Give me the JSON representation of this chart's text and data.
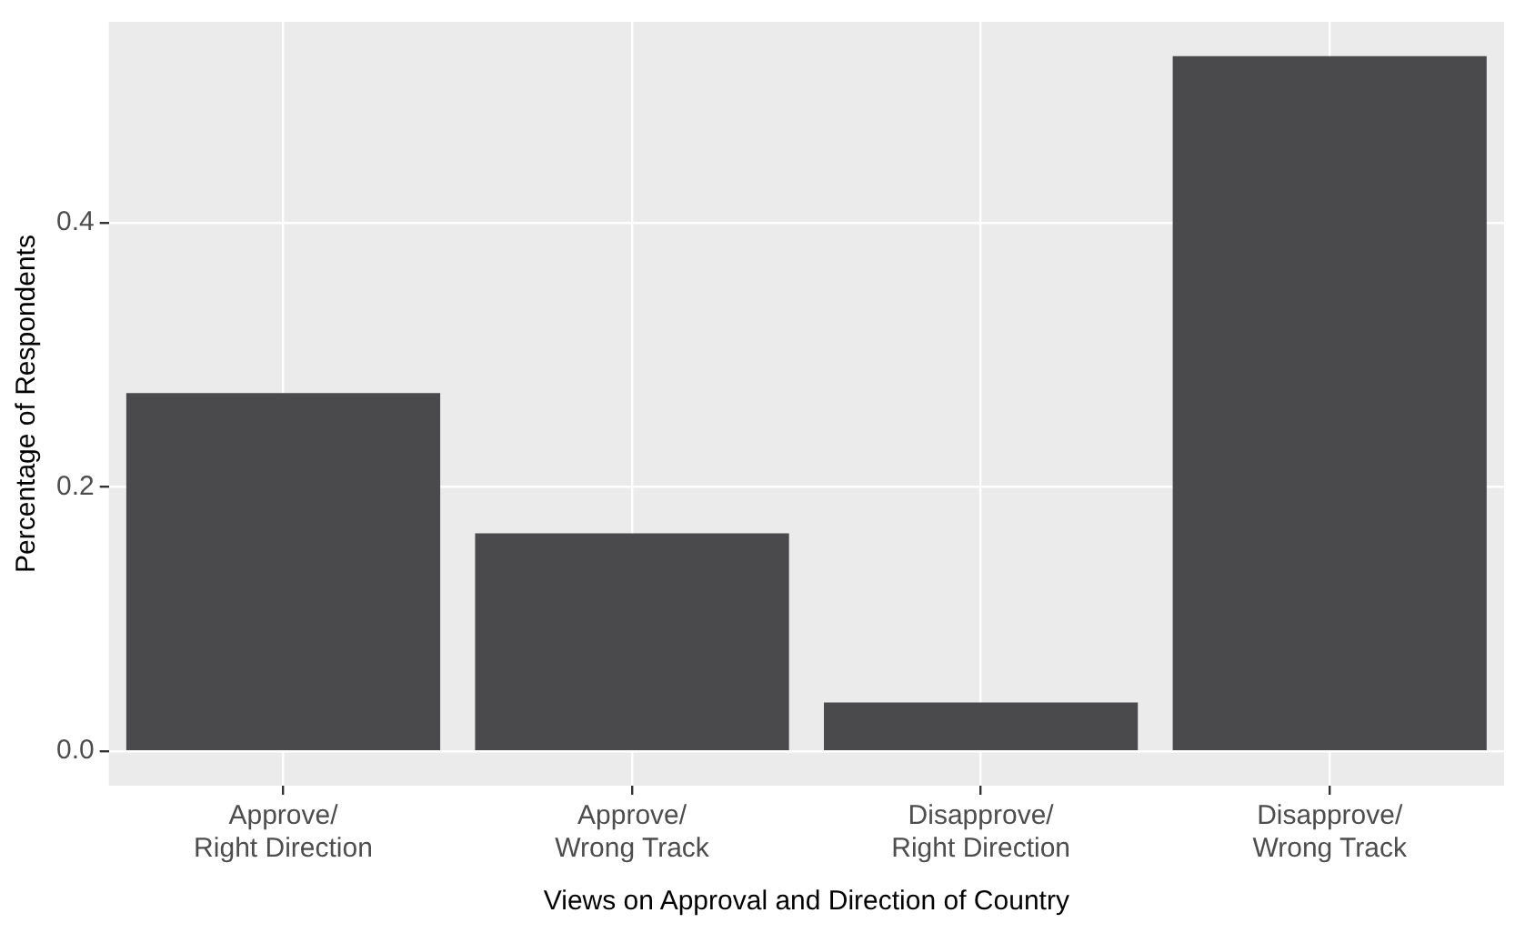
{
  "chart_data": {
    "type": "bar",
    "xlabel": "Views on Approval and Direction of Country",
    "ylabel": "Percentage of Respondents",
    "categories": [
      "Approve/\nRight Direction",
      "Approve/\nWrong Track",
      "Disapprove/\nRight Direction",
      "Disapprove/\nWrong Track"
    ],
    "values": [
      0.271,
      0.165,
      0.037,
      0.526
    ],
    "color": "#4a4a4c",
    "ylim": [
      -0.026,
      0.552
    ],
    "yticks": [
      {
        "value": 0,
        "label": "0.0"
      },
      {
        "value": 0.2,
        "label": "0.2"
      },
      {
        "value": 0.4,
        "label": "0.4"
      }
    ],
    "grid": true
  }
}
